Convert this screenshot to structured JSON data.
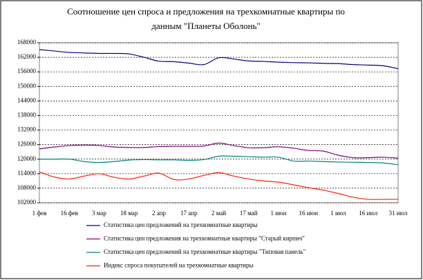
{
  "chart_data": {
    "type": "line",
    "title": [
      "Соотношение цен спроса и предложения на трехкомнатные квартиры     по",
      "данным \"Планеты Оболонь\""
    ],
    "categories": [
      "1 фев",
      null,
      "16 фев",
      null,
      "3 мар",
      null,
      "18 мар",
      null,
      "2 апр",
      null,
      "17 апр",
      null,
      "2 май",
      null,
      "17 май",
      null,
      "1 июн",
      null,
      "16 июн",
      null,
      "1 июл",
      null,
      "16 июл",
      null,
      "31 июл"
    ],
    "ylim": [
      102000,
      168000
    ],
    "yticks": [
      102000,
      108000,
      114000,
      120000,
      126000,
      132000,
      138000,
      144000,
      150000,
      156000,
      162000,
      168000
    ],
    "grid": true,
    "legend": "bottom",
    "series": [
      {
        "name": "Статистика цен предложений на трехкомнатные квартиры",
        "color": "#000080",
        "values": [
          165200,
          164600,
          164000,
          163800,
          163600,
          163600,
          163400,
          162000,
          160400,
          160200,
          159600,
          159000,
          161800,
          161300,
          160500,
          160300,
          160000,
          159800,
          159700,
          159500,
          159400,
          159000,
          158800,
          158500,
          157300
        ]
      },
      {
        "name": "Статистика цен предложения на трехкомнатные квартиры \"Старый кирпич\"",
        "color": "#800080",
        "values": [
          124200,
          125000,
          125600,
          125800,
          125600,
          125000,
          124800,
          124800,
          125200,
          125300,
          125300,
          125400,
          126600,
          125600,
          124700,
          124700,
          125100,
          124500,
          123600,
          123300,
          121600,
          120600,
          120600,
          120800,
          120400
        ]
      },
      {
        "name": "Статистика цен предложений на трехкомнатные квартиры \"Типовая панель\"",
        "color": "#008080",
        "values": [
          120000,
          120000,
          120000,
          119000,
          118600,
          119000,
          119600,
          119800,
          119700,
          119700,
          119500,
          119800,
          121200,
          121200,
          121000,
          120800,
          120800,
          119200,
          119200,
          119000,
          118800,
          118700,
          118600,
          118400,
          117700
        ]
      },
      {
        "name": "Индекс спроса покупателей на трехкомнатные квартиры",
        "color": "#ff2000",
        "values": [
          114800,
          112600,
          111800,
          113000,
          114000,
          112500,
          111800,
          113000,
          114200,
          111600,
          111800,
          113300,
          114400,
          113000,
          111800,
          111000,
          110500,
          109400,
          108200,
          107200,
          105800,
          104300,
          103400,
          103400,
          103400
        ]
      }
    ]
  }
}
